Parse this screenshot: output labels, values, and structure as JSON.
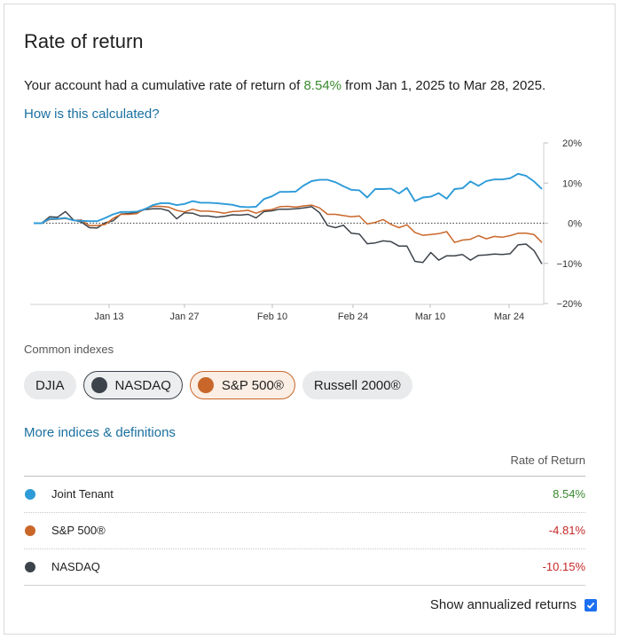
{
  "title": "Rate of return",
  "summary": {
    "prefix": "Your account had a cumulative rate of return of ",
    "value": "8.54%",
    "suffix": " from Jan 1, 2025 to Mar 28, 2025."
  },
  "how_link": "How is this calculated?",
  "chart_data": {
    "type": "line",
    "y_ticks": [
      "20%",
      "10%",
      "0%",
      "−10%",
      "−20%"
    ],
    "x_ticks": [
      "Jan 13",
      "Jan 27",
      "Feb 10",
      "Feb 24",
      "Mar 10",
      "Mar 24"
    ],
    "ylim": [
      -20,
      20
    ],
    "series": [
      {
        "name": "Joint Tenant",
        "color": "#2d9bd8",
        "values": [
          0,
          0,
          1.1,
          1.1,
          1.3,
          0.7,
          0.6,
          0.5,
          0.5,
          1.3,
          2.2,
          2.8,
          2.8,
          2.9,
          3.5,
          4.5,
          5,
          5,
          4.5,
          4.8,
          5.5,
          5.1,
          5.1,
          5,
          4.8,
          4.6,
          4.1,
          4,
          4.1,
          6,
          6.7,
          7.8,
          7.8,
          7.9,
          9.4,
          10.5,
          10.8,
          10.8,
          10.2,
          9.2,
          8.3,
          8.2,
          6.4,
          8.5,
          8.5,
          8.6,
          7.4,
          8.8,
          5.5,
          6.4,
          6.6,
          7.5,
          6.1,
          8.5,
          8.7,
          10.4,
          9.3,
          10.5,
          10.9,
          10.9,
          11.2,
          12.3,
          11.8,
          10.4,
          8.54
        ]
      },
      {
        "name": "S&P 500®",
        "color": "#c9672a",
        "values": [
          0,
          0,
          0.9,
          1,
          1.2,
          0.7,
          0.8,
          -0.6,
          -0.6,
          -0.3,
          1.2,
          2.2,
          2.2,
          2.4,
          3.6,
          4.2,
          4.2,
          4,
          3.2,
          2.8,
          3.5,
          3,
          3,
          2.8,
          2.5,
          2.9,
          3,
          3.2,
          2.5,
          3.2,
          3.4,
          4.1,
          4.2,
          4,
          4.3,
          4.5,
          3.8,
          2.2,
          2.2,
          1.9,
          1.6,
          1.8,
          -0.2,
          0.2,
          0.9,
          -0.3,
          -1.1,
          -0.4,
          -2.3,
          -3,
          -2.8,
          -2.6,
          -2.1,
          -4.8,
          -4.2,
          -4,
          -3.1,
          -3.9,
          -3.3,
          -3.5,
          -3.1,
          -2.5,
          -2.5,
          -2.8,
          -4.81
        ]
      },
      {
        "name": "NASDAQ",
        "color": "#3d434a",
        "values": [
          0,
          0,
          1.6,
          1.5,
          2.9,
          0.8,
          0.3,
          -1.1,
          -1.2,
          0.1,
          0.6,
          2.3,
          2.4,
          2.7,
          3.4,
          3.6,
          3.6,
          3.1,
          1.1,
          2.6,
          2.5,
          1.8,
          1.8,
          1.5,
          1.7,
          2.1,
          2,
          2.2,
          1.3,
          2.9,
          3.1,
          3.5,
          3.5,
          3.6,
          3.8,
          4.1,
          2.6,
          -0.6,
          -1.1,
          -0.5,
          -2.5,
          -2.7,
          -5.1,
          -4.9,
          -4.4,
          -4.6,
          -5.7,
          -5.7,
          -9.5,
          -9.8,
          -7.3,
          -9.2,
          -8.1,
          -8.1,
          -7.8,
          -9.2,
          -8,
          -7.9,
          -7.7,
          -7.8,
          -7.6,
          -5.4,
          -5.2,
          -6.8,
          -10.15
        ]
      }
    ]
  },
  "common_indexes_label": "Common indexes",
  "chips": {
    "djia": "DJIA",
    "nasdaq": "NASDAQ",
    "sp500": "S&P 500®",
    "russell": "Russell 2000®",
    "nasdaq_color": "#3d434a",
    "sp500_color": "#c9672a"
  },
  "more_link": "More indices & definitions",
  "table": {
    "header": "Rate of Return",
    "rows": [
      {
        "name": "Joint Tenant",
        "value": "8.54%",
        "color": "#2d9bd8"
      },
      {
        "name": "S&P 500®",
        "value": "-4.81%",
        "color": "#c9672a"
      },
      {
        "name": "NASDAQ",
        "value": "-10.15%",
        "color": "#3d434a"
      }
    ]
  },
  "annualized_label": "Show annualized returns"
}
